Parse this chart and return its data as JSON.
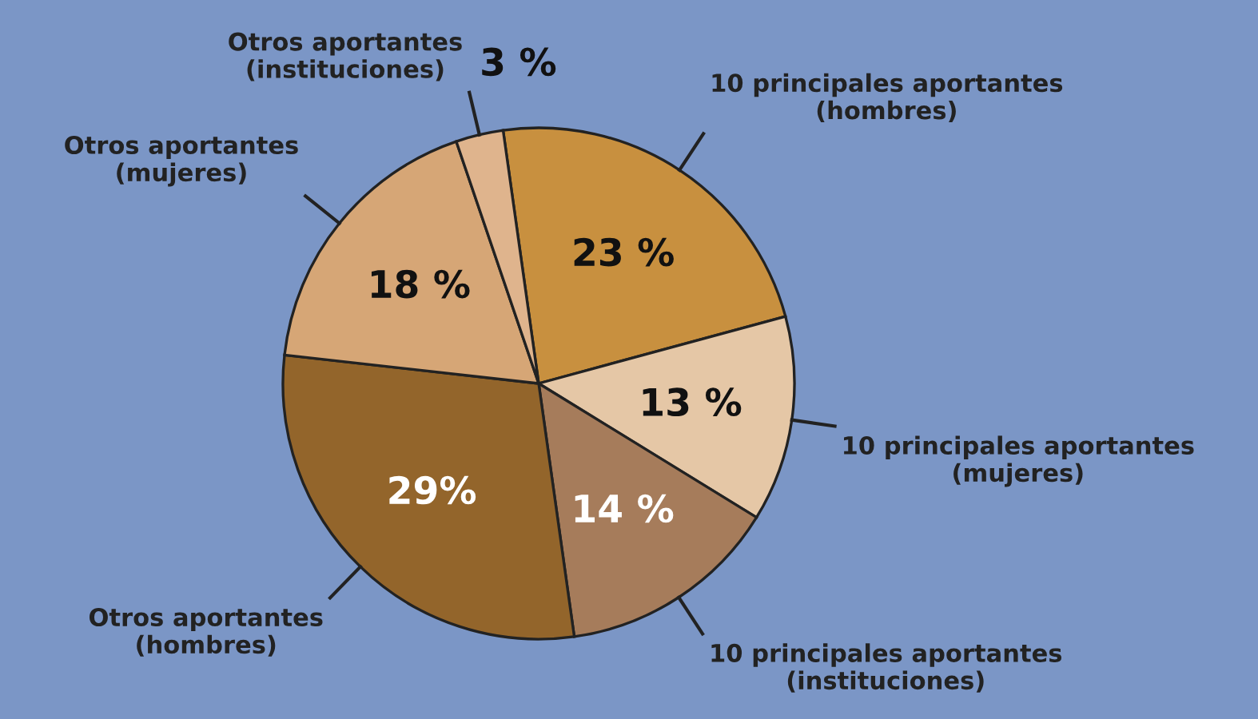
{
  "chart_data": {
    "type": "pie",
    "categories": [
      "10 principales aportantes\n(hombres)",
      "10 principales aportantes\n(mujeres)",
      "10 principales aportantes\n(instituciones)",
      "Otros aportantes\n(hombres)",
      "Otros aportantes\n(mujeres)",
      "Otros aportantes\n(instituciones)"
    ],
    "values": [
      23,
      13,
      14,
      29,
      18,
      3
    ],
    "value_labels": [
      "23 %",
      "13 %",
      "14 %",
      "29%",
      "18 %",
      "3 %"
    ],
    "colors": [
      "#c8903f",
      "#e5c7a6",
      "#a67c5b",
      "#93652b",
      "#d6a676",
      "#dfb48d"
    ]
  }
}
